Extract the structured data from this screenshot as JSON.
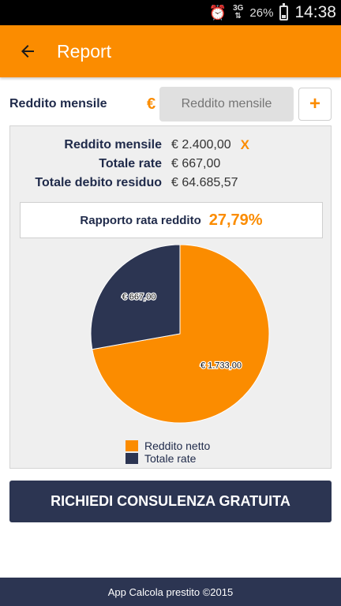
{
  "status_bar": {
    "icons": [
      "alarm-icon",
      "network-3g-icon",
      "battery-icon"
    ],
    "network_label": "3G",
    "battery": "26%",
    "time": "14:38"
  },
  "app_bar": {
    "title": "Report",
    "back_icon": "arrow-left-icon"
  },
  "income_entry": {
    "label": "Reddito mensile",
    "currency": "€",
    "placeholder": "Reddito mensile",
    "add_label": "+"
  },
  "summary": {
    "rows": [
      {
        "label": "Reddito mensile",
        "value": "€ 2.400,00",
        "remove": "X"
      },
      {
        "label": "Totale rate",
        "value": "€ 667,00"
      },
      {
        "label": "Totale debito residuo",
        "value": "€ 64.685,57"
      }
    ]
  },
  "ratio": {
    "label": "Rapporto rata reddito",
    "value": "27,79%"
  },
  "chart_data": {
    "type": "pie",
    "title": "",
    "series": [
      {
        "name": "Reddito netto",
        "value": 1733.0,
        "label": "€ 1.733,00",
        "color": "#fb8c00"
      },
      {
        "name": "Totale rate",
        "value": 667.0,
        "label": "€ 667,00",
        "color": "#2c3552"
      }
    ],
    "legend_position": "bottom"
  },
  "cta": {
    "label": "RICHIEDI CONSULENZA GRATUITA"
  },
  "footer": {
    "text": "App Calcola prestito ©2015"
  },
  "colors": {
    "accent": "#fb8c00",
    "navy": "#2c3552",
    "panel": "#efefef"
  }
}
